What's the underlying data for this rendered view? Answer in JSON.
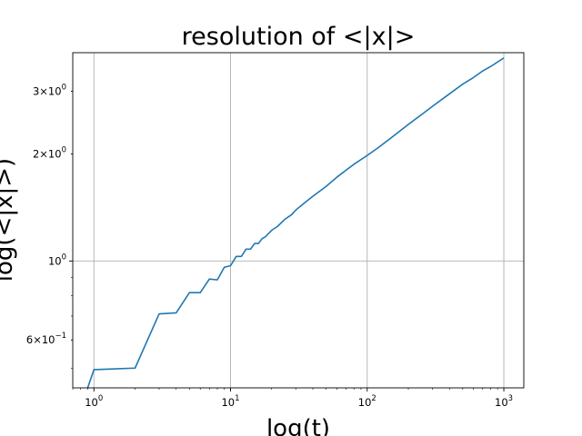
{
  "chart_data": {
    "type": "line",
    "title": "resolution of <|x|>",
    "xlabel": "log(t)",
    "ylabel": "log(<|x|>)",
    "xscale": "log",
    "yscale": "log",
    "xlim": [
      0.7,
      1400
    ],
    "ylim": [
      0.44,
      3.85
    ],
    "grid": true,
    "color": "#1f77b4",
    "x_ticks": [
      {
        "value": 1,
        "base": "10",
        "exp": "0"
      },
      {
        "value": 10,
        "base": "10",
        "exp": "1"
      },
      {
        "value": 100,
        "base": "10",
        "exp": "2"
      },
      {
        "value": 1000,
        "base": "10",
        "exp": "3"
      }
    ],
    "y_ticks": [
      {
        "value": 0.6,
        "mant": "6",
        "base": "10",
        "exp": "−1",
        "kind": "minor"
      },
      {
        "value": 1,
        "mant": "",
        "base": "10",
        "exp": "0",
        "kind": "major"
      },
      {
        "value": 2,
        "mant": "2",
        "base": "10",
        "exp": "0",
        "kind": "minor"
      },
      {
        "value": 3,
        "mant": "3",
        "base": "10",
        "exp": "0",
        "kind": "minor"
      }
    ],
    "series": [
      {
        "x": [
          0.9,
          1,
          2,
          3,
          4,
          5,
          6,
          7,
          8,
          9,
          10,
          11,
          12,
          13,
          14,
          15,
          16,
          17,
          18,
          20,
          22,
          25,
          28,
          30,
          35,
          40,
          50,
          60,
          70,
          80,
          100,
          120,
          150,
          200,
          250,
          300,
          400,
          500,
          600,
          700,
          800,
          1000
        ],
        "y": [
          0.44,
          0.495,
          0.5,
          0.71,
          0.715,
          0.815,
          0.815,
          0.89,
          0.885,
          0.96,
          0.97,
          1.03,
          1.03,
          1.08,
          1.08,
          1.12,
          1.12,
          1.155,
          1.17,
          1.22,
          1.25,
          1.31,
          1.35,
          1.39,
          1.46,
          1.52,
          1.62,
          1.72,
          1.8,
          1.87,
          1.98,
          2.08,
          2.22,
          2.42,
          2.58,
          2.72,
          2.95,
          3.14,
          3.28,
          3.42,
          3.52,
          3.72
        ]
      }
    ]
  }
}
